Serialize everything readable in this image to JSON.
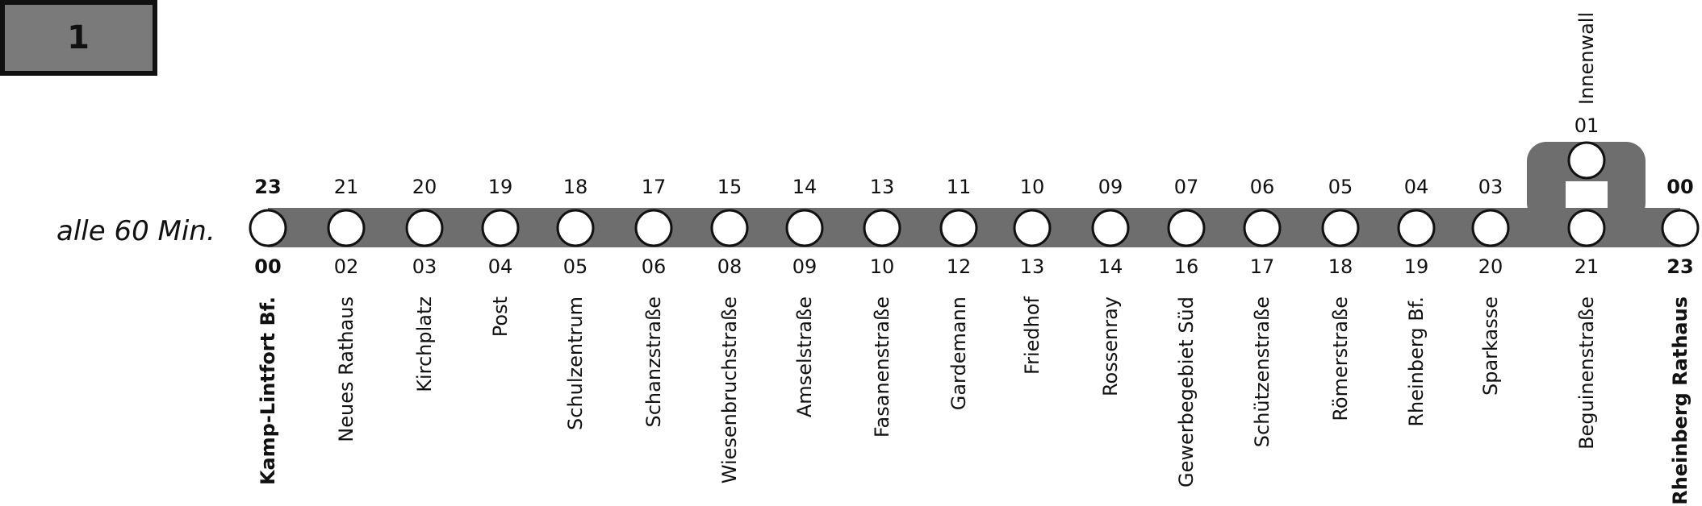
{
  "line": {
    "number": "1",
    "frequency": "alle 60 Min."
  },
  "stops": [
    {
      "name": "Kamp-Lintfort Bf.",
      "above": "23",
      "below": "00"
    },
    {
      "name": "Neues Rathaus",
      "above": "21",
      "below": "02"
    },
    {
      "name": "Kirchplatz",
      "above": "20",
      "below": "03"
    },
    {
      "name": "Post",
      "above": "19",
      "below": "04"
    },
    {
      "name": "Schulzentrum",
      "above": "18",
      "below": "05"
    },
    {
      "name": "Schanzstraße",
      "above": "17",
      "below": "06"
    },
    {
      "name": "Wiesenbruchstraße",
      "above": "15",
      "below": "08"
    },
    {
      "name": "Amselstraße",
      "above": "14",
      "below": "09"
    },
    {
      "name": "Fasanenstraße",
      "above": "13",
      "below": "10"
    },
    {
      "name": "Gardemann",
      "above": "11",
      "below": "12"
    },
    {
      "name": "Friedhof",
      "above": "10",
      "below": "13"
    },
    {
      "name": "Rossenray",
      "above": "09",
      "below": "14"
    },
    {
      "name": "Gewerbegebiet Süd",
      "above": "07",
      "below": "16"
    },
    {
      "name": "Schützenstraße",
      "above": "06",
      "below": "17"
    },
    {
      "name": "Römerstraße",
      "above": "05",
      "below": "18"
    },
    {
      "name": "Rheinberg Bf.",
      "above": "04",
      "below": "19"
    },
    {
      "name": "Sparkasse",
      "above": "03",
      "below": "20"
    },
    {
      "name": "Beguinenstraße",
      "below": "21"
    },
    {
      "name": "Rheinberg Rathaus",
      "above": "00",
      "below": "23"
    }
  ],
  "branch": {
    "name": "Innenwall",
    "time": "01"
  }
}
